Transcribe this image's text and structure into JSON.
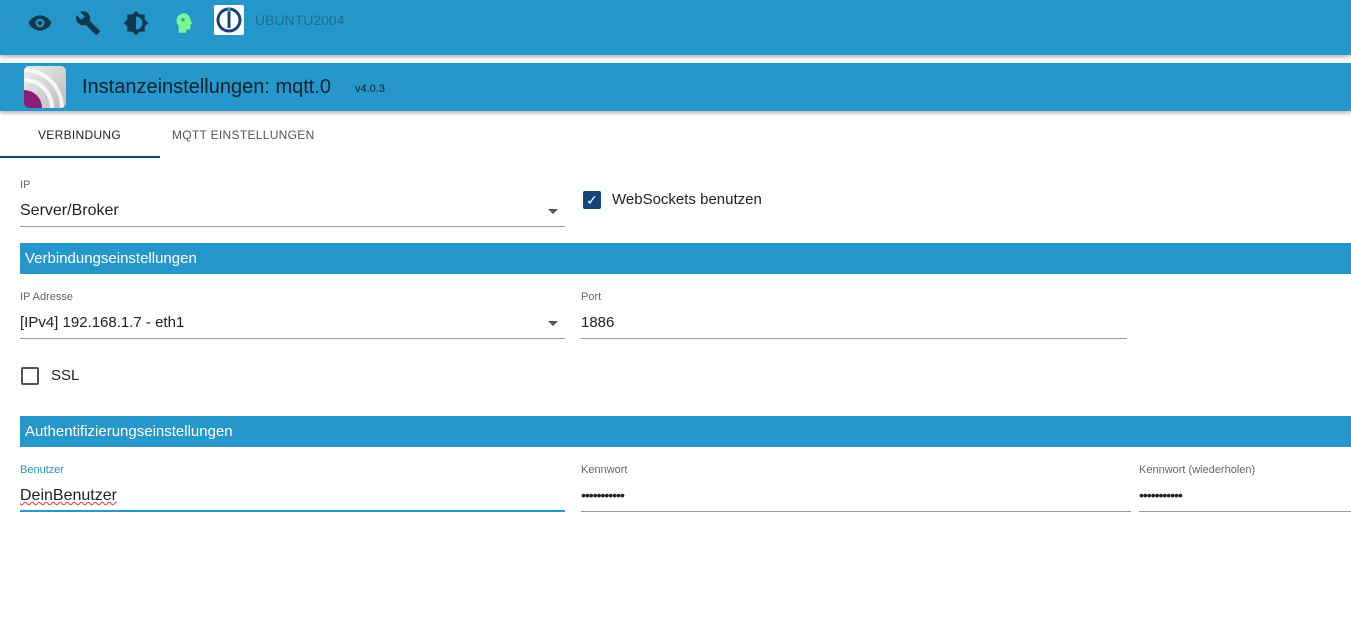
{
  "topbar": {
    "host": "UBUNTU2004",
    "icons": [
      "eye-icon",
      "wrench-icon",
      "brightness-icon",
      "expert-mode-head-icon",
      "iobroker-logo"
    ]
  },
  "header": {
    "title": "Instanzeinstellungen: mqtt.0",
    "version": "v4.0.3"
  },
  "tabs": [
    {
      "label": "VERBINDUNG",
      "active": true
    },
    {
      "label": "MQTT EINSTELLUNGEN",
      "active": false
    }
  ],
  "form": {
    "ip_type": {
      "label": "IP",
      "value": "Server/Broker"
    },
    "websockets": {
      "label": "WebSockets benutzen",
      "checked": true
    },
    "section_connection": "Verbindungseinstellungen",
    "ip_address": {
      "label": "IP Adresse",
      "value": "[IPv4] 192.168.1.7 - eth1"
    },
    "port": {
      "label": "Port",
      "value": "1886"
    },
    "ssl": {
      "label": "SSL",
      "checked": false
    },
    "section_auth": "Authentifizierungseinstellungen",
    "user": {
      "label": "Benutzer",
      "value": "DeinBenutzer"
    },
    "password": {
      "label": "Kennwort",
      "value": "•••••••••••"
    },
    "password_repeat": {
      "label": "Kennwort (wiederholen)",
      "value": "•••••••••••"
    }
  },
  "colors": {
    "primary": "#2597cb",
    "accent": "#164477"
  }
}
